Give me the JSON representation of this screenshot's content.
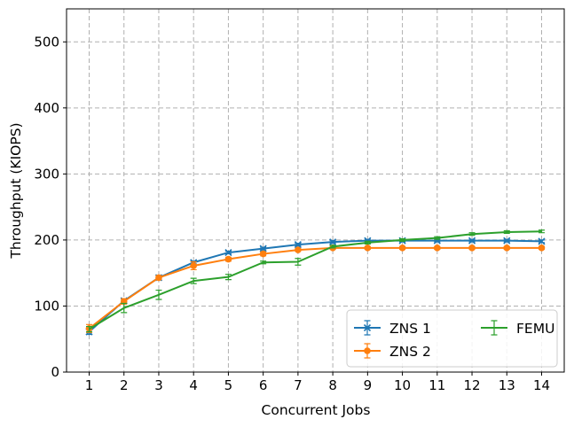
{
  "chart_data": {
    "type": "line",
    "title": "",
    "xlabel": "Concurrent Jobs",
    "ylabel": "Throughput (KIOPS)",
    "x": [
      1,
      2,
      3,
      4,
      5,
      6,
      7,
      8,
      9,
      10,
      11,
      12,
      13,
      14
    ],
    "xlim": [
      0.35,
      14.65
    ],
    "ylim": [
      0,
      550
    ],
    "yticks": [
      0,
      100,
      200,
      300,
      400,
      500
    ],
    "grid": true,
    "legend_position": "lower-right",
    "series": [
      {
        "name": "ZNS 1",
        "color": "#1f77b4",
        "marker": "x",
        "values": [
          61,
          108,
          143,
          166,
          181,
          187,
          193,
          197,
          199,
          199,
          199,
          199,
          199,
          198
        ],
        "error": [
          4,
          2,
          2,
          2,
          2,
          2,
          2,
          2,
          2,
          2,
          2,
          2,
          2,
          2
        ]
      },
      {
        "name": "ZNS 2",
        "color": "#ff7f0e",
        "marker": "o",
        "values": [
          66,
          107,
          143,
          161,
          171,
          179,
          185,
          188,
          188,
          188,
          188,
          188,
          188,
          188
        ],
        "error": [
          6,
          4,
          3,
          6,
          3,
          3,
          2,
          2,
          2,
          2,
          2,
          2,
          2,
          2
        ]
      },
      {
        "name": "FEMU",
        "color": "#2ca02c",
        "marker": "",
        "values": [
          65,
          97,
          117,
          138,
          144,
          166,
          167,
          190,
          196,
          200,
          203,
          209,
          212,
          213
        ],
        "error": [
          4,
          7,
          7,
          4,
          4,
          2,
          5,
          2,
          2,
          2,
          2,
          2,
          2,
          2
        ]
      }
    ]
  }
}
